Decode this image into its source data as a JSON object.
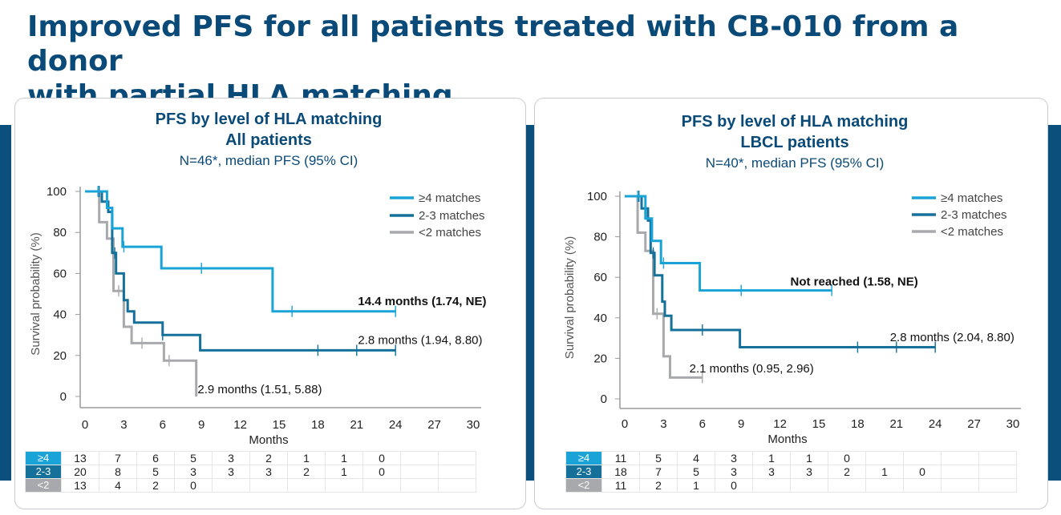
{
  "slide": {
    "title_line1": "Improved PFS for all patients treated with CB-010 from a donor",
    "title_line2": "with partial HLA matching"
  },
  "colors": {
    "brand_dark": "#0a4a78",
    "ge4": "#1aa3d6",
    "m23": "#15709a",
    "lt2": "#a7a9ac"
  },
  "chart_data": [
    {
      "type": "line",
      "title": "PFS by level of HLA matching",
      "subtitle": "All patients",
      "note": "N=46*, median PFS (95% CI)",
      "xlabel": "Months",
      "ylabel": "Survival probability (%)",
      "xlim": [
        0,
        30
      ],
      "ylim": [
        0,
        100
      ],
      "xticks": [
        "0",
        "3",
        "6",
        "9",
        "12",
        "15",
        "18",
        "21",
        "24",
        "27",
        "30"
      ],
      "yticks": [
        "0",
        "20",
        "40",
        "60",
        "80",
        "100"
      ],
      "legend_position": "top-right",
      "series": [
        {
          "key": "ge4",
          "name": "≥4 matches",
          "points": [
            [
              0,
              100
            ],
            [
              1.7,
              100
            ],
            [
              1.7,
              92
            ],
            [
              2.1,
              92
            ],
            [
              2.1,
              82
            ],
            [
              2.9,
              82
            ],
            [
              2.9,
              73
            ],
            [
              5.9,
              73
            ],
            [
              5.9,
              62.5
            ],
            [
              14.5,
              62.5
            ],
            [
              14.5,
              41.5
            ],
            [
              24,
              41.5
            ]
          ],
          "censors": [
            [
              1.0,
              100
            ],
            [
              3.0,
              73
            ],
            [
              9.0,
              62.5
            ],
            [
              16.0,
              41.5
            ],
            [
              24.0,
              41.5
            ]
          ],
          "annotation": "14.4 months (1.74, NE)",
          "annotation_bold": true,
          "annotation_anchor": [
            21.1,
            44.5
          ]
        },
        {
          "key": "m23",
          "name": "2-3 matches",
          "points": [
            [
              0,
              100
            ],
            [
              1.3,
              100
            ],
            [
              1.3,
              95
            ],
            [
              1.8,
              95
            ],
            [
              1.8,
              90
            ],
            [
              2.1,
              90
            ],
            [
              2.1,
              70
            ],
            [
              2.4,
              70
            ],
            [
              2.4,
              60
            ],
            [
              3.0,
              60
            ],
            [
              3.0,
              47
            ],
            [
              3.3,
              47
            ],
            [
              3.3,
              41.5
            ],
            [
              3.8,
              41.5
            ],
            [
              3.8,
              36
            ],
            [
              6.0,
              36
            ],
            [
              6.0,
              30
            ],
            [
              8.9,
              30
            ],
            [
              8.9,
              22.5
            ],
            [
              24,
              22.5
            ]
          ],
          "censors": [
            [
              1.1,
              100
            ],
            [
              2.3,
              70
            ],
            [
              6.0,
              30
            ],
            [
              18.0,
              22.5
            ],
            [
              21.0,
              22.5
            ],
            [
              24.0,
              22.5
            ]
          ],
          "annotation": "2.8 months (1.94, 8.80)",
          "annotation_bold": false,
          "annotation_anchor": [
            21.1,
            25.5
          ]
        },
        {
          "key": "lt2",
          "name": "<2 matches",
          "points": [
            [
              0,
              100
            ],
            [
              1.1,
              100
            ],
            [
              1.1,
              85
            ],
            [
              1.7,
              85
            ],
            [
              1.7,
              77
            ],
            [
              2.2,
              77
            ],
            [
              2.2,
              51.5
            ],
            [
              3.0,
              51.5
            ],
            [
              3.0,
              34
            ],
            [
              3.6,
              34
            ],
            [
              3.6,
              26
            ],
            [
              6.1,
              26
            ],
            [
              6.1,
              17.5
            ],
            [
              8.6,
              17.5
            ],
            [
              8.6,
              0
            ]
          ],
          "censors": [
            [
              2.6,
              51.5
            ],
            [
              4.4,
              26
            ],
            [
              6.5,
              17.5
            ]
          ],
          "annotation": "2.9 months (1.51, 5.88)",
          "annotation_bold": false,
          "annotation_anchor": [
            8.7,
            1.5
          ]
        }
      ],
      "risk_table": [
        {
          "key": "ge4",
          "label": "≥4",
          "values": [
            "13",
            "7",
            "6",
            "5",
            "3",
            "2",
            "1",
            "1",
            "0",
            "",
            ""
          ]
        },
        {
          "key": "m23",
          "label": "2-3",
          "values": [
            "20",
            "8",
            "5",
            "3",
            "3",
            "3",
            "2",
            "1",
            "0",
            "",
            ""
          ]
        },
        {
          "key": "lt2",
          "label": "<2",
          "values": [
            "13",
            "4",
            "2",
            "0",
            "",
            "",
            "",
            "",
            "",
            "",
            ""
          ]
        }
      ]
    },
    {
      "type": "line",
      "title": "PFS by level of HLA matching",
      "subtitle": "LBCL patients",
      "note": "N=40*, median PFS (95% CI)",
      "xlabel": "Months",
      "ylabel": "Survival probability (%)",
      "xlim": [
        0,
        30
      ],
      "ylim": [
        0,
        100
      ],
      "xticks": [
        "0",
        "3",
        "6",
        "9",
        "12",
        "15",
        "18",
        "21",
        "24",
        "27",
        "30"
      ],
      "yticks": [
        "0",
        "20",
        "40",
        "60",
        "80",
        "100"
      ],
      "legend_position": "top-right",
      "series": [
        {
          "key": "ge4",
          "name": "≥4 matches",
          "points": [
            [
              0,
              100
            ],
            [
              1.6,
              100
            ],
            [
              1.6,
              89
            ],
            [
              2.1,
              89
            ],
            [
              2.1,
              78
            ],
            [
              2.8,
              78
            ],
            [
              2.8,
              67
            ],
            [
              5.8,
              67
            ],
            [
              5.8,
              53.5
            ],
            [
              16,
              53.5
            ]
          ],
          "censors": [
            [
              1.0,
              100
            ],
            [
              3.0,
              67
            ],
            [
              9.0,
              53.5
            ],
            [
              16.0,
              53.5
            ]
          ],
          "annotation": "Not reached  (1.58, NE)",
          "annotation_bold": true,
          "annotation_anchor": [
            12.8,
            56
          ]
        },
        {
          "key": "m23",
          "name": "2-3 matches",
          "points": [
            [
              0,
              100
            ],
            [
              1.3,
              100
            ],
            [
              1.3,
              94
            ],
            [
              1.8,
              94
            ],
            [
              1.8,
              88
            ],
            [
              2.0,
              88
            ],
            [
              2.0,
              72
            ],
            [
              2.3,
              72
            ],
            [
              2.3,
              61
            ],
            [
              2.9,
              61
            ],
            [
              2.9,
              48
            ],
            [
              3.1,
              48
            ],
            [
              3.1,
              41
            ],
            [
              3.6,
              41
            ],
            [
              3.6,
              34
            ],
            [
              8.9,
              34
            ],
            [
              8.9,
              25.5
            ],
            [
              24,
              25.5
            ]
          ],
          "censors": [
            [
              1.1,
              100
            ],
            [
              2.2,
              72
            ],
            [
              6.0,
              34
            ],
            [
              18.0,
              25.5
            ],
            [
              21.0,
              25.5
            ],
            [
              24.0,
              25.5
            ]
          ],
          "annotation": "2.8 months (2.04, 8.80)",
          "annotation_bold": false,
          "annotation_anchor": [
            20.5,
            28.5
          ]
        },
        {
          "key": "lt2",
          "name": "<2 matches",
          "points": [
            [
              0,
              100
            ],
            [
              1.0,
              100
            ],
            [
              1.0,
              82
            ],
            [
              1.6,
              82
            ],
            [
              1.6,
              73
            ],
            [
              2.2,
              73
            ],
            [
              2.2,
              42
            ],
            [
              3.0,
              42
            ],
            [
              3.0,
              21
            ],
            [
              3.5,
              21
            ],
            [
              3.5,
              10.5
            ],
            [
              6,
              10.5
            ]
          ],
          "censors": [
            [
              2.5,
              42
            ],
            [
              6.0,
              10.5
            ]
          ],
          "annotation": "2.1 months (0.95, 2.96)",
          "annotation_bold": false,
          "annotation_anchor": [
            5.0,
            13
          ]
        }
      ],
      "risk_table": [
        {
          "key": "ge4",
          "label": "≥4",
          "values": [
            "11",
            "5",
            "4",
            "3",
            "1",
            "1",
            "0",
            "",
            "",
            "",
            ""
          ]
        },
        {
          "key": "m23",
          "label": "2-3",
          "values": [
            "18",
            "7",
            "5",
            "3",
            "3",
            "3",
            "2",
            "1",
            "0",
            "",
            ""
          ]
        },
        {
          "key": "lt2",
          "label": "<2",
          "values": [
            "11",
            "2",
            "1",
            "0",
            "",
            "",
            "",
            "",
            "",
            "",
            ""
          ]
        }
      ]
    }
  ]
}
